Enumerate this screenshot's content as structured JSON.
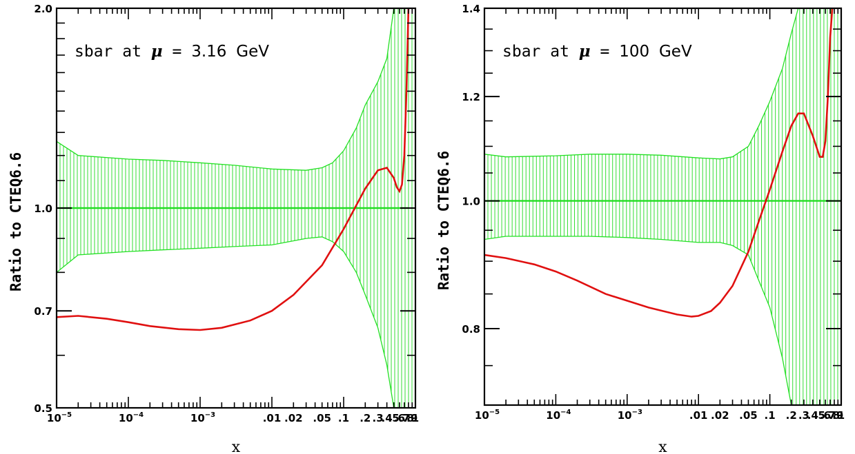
{
  "colors": {
    "band": "#22dd22",
    "central": "#e01010",
    "axes": "#000000"
  },
  "chart_data": [
    {
      "type": "line",
      "annotation": {
        "prefix": "sbar at",
        "symbol": "μ",
        "equals": "=",
        "value": "3.16",
        "unit": "GeV"
      },
      "xlabel": "x",
      "ylabel": "Ratio to CTEQ6.6",
      "xscale": "log",
      "yscale": "log",
      "xlim": [
        1e-05,
        1
      ],
      "ylim": [
        0.5,
        2.0
      ],
      "grid": false,
      "yticks": [
        {
          "value": 0.5,
          "label": "0.5"
        },
        {
          "value": 0.7,
          "label": "0.7"
        },
        {
          "value": 1.0,
          "label": "1.0"
        },
        {
          "value": 2.0,
          "label": "2.0"
        }
      ],
      "xticks": [
        {
          "value": 1e-05,
          "base": "10",
          "exp": "−5"
        },
        {
          "value": 0.0001,
          "base": "10",
          "exp": "−4"
        },
        {
          "value": 0.001,
          "base": "10",
          "exp": "−3"
        },
        {
          "value": 0.01,
          "label": ".01"
        },
        {
          "value": 0.02,
          "label": ".02"
        },
        {
          "value": 0.05,
          "label": ".05"
        },
        {
          "value": 0.1,
          "label": ".1"
        },
        {
          "value": 0.2,
          "label": ".2"
        },
        {
          "value": 0.3,
          "label": ".3"
        },
        {
          "value": 0.4,
          "label": ".4"
        },
        {
          "value": 0.5,
          "label": ".5"
        },
        {
          "value": 0.6,
          "label": ".6"
        },
        {
          "value": 0.7,
          "label": ".7"
        },
        {
          "value": 0.8,
          "label": ".8"
        },
        {
          "value": 0.9,
          "label": ".9"
        },
        {
          "value": 1.0,
          "label": "1"
        }
      ],
      "reference_line": {
        "y": 1.0,
        "x_end": 0.8
      },
      "band": {
        "x": [
          1e-05,
          2e-05,
          0.0001,
          0.0003,
          0.001,
          0.003,
          0.01,
          0.03,
          0.05,
          0.07,
          0.1,
          0.15,
          0.2,
          0.3,
          0.4,
          0.5,
          0.6,
          0.7,
          0.8,
          0.9,
          1.0
        ],
        "upper": [
          1.26,
          1.2,
          1.185,
          1.18,
          1.17,
          1.16,
          1.145,
          1.14,
          1.15,
          1.17,
          1.22,
          1.32,
          1.43,
          1.55,
          1.68,
          2.0,
          2.0,
          2.0,
          2.0,
          2.0,
          2.0
        ],
        "lower": [
          0.8,
          0.85,
          0.86,
          0.865,
          0.87,
          0.875,
          0.88,
          0.9,
          0.905,
          0.89,
          0.86,
          0.8,
          0.74,
          0.66,
          0.58,
          0.5,
          0.5,
          0.5,
          0.5,
          0.5,
          0.5
        ]
      },
      "central": {
        "x": [
          1e-05,
          2e-05,
          5e-05,
          0.0001,
          0.0002,
          0.0005,
          0.001,
          0.002,
          0.005,
          0.01,
          0.02,
          0.05,
          0.1,
          0.2,
          0.3,
          0.4,
          0.5,
          0.55,
          0.6,
          0.65,
          0.7,
          0.75,
          0.8
        ],
        "y": [
          0.685,
          0.688,
          0.681,
          0.673,
          0.664,
          0.657,
          0.655,
          0.66,
          0.677,
          0.7,
          0.74,
          0.82,
          0.93,
          1.07,
          1.14,
          1.15,
          1.11,
          1.075,
          1.06,
          1.085,
          1.2,
          1.5,
          2.0
        ]
      }
    },
    {
      "type": "line",
      "annotation": {
        "prefix": "sbar at",
        "symbol": "μ",
        "equals": "=",
        "value": "100",
        "unit": "GeV"
      },
      "xlabel": "x",
      "ylabel": "Ratio to CTEQ6.6",
      "xscale": "log",
      "yscale": "log",
      "xlim": [
        1e-05,
        1
      ],
      "ylim": [
        0.7,
        1.4
      ],
      "grid": false,
      "yticks": [
        {
          "value": 0.8,
          "label": "0.8"
        },
        {
          "value": 1.0,
          "label": "1.0"
        },
        {
          "value": 1.2,
          "label": "1.2"
        },
        {
          "value": 1.4,
          "label": "1.4"
        }
      ],
      "xticks": [
        {
          "value": 1e-05,
          "base": "10",
          "exp": "−5"
        },
        {
          "value": 0.0001,
          "base": "10",
          "exp": "−4"
        },
        {
          "value": 0.001,
          "base": "10",
          "exp": "−3"
        },
        {
          "value": 0.01,
          "label": ".01"
        },
        {
          "value": 0.02,
          "label": ".02"
        },
        {
          "value": 0.05,
          "label": ".05"
        },
        {
          "value": 0.1,
          "label": ".1"
        },
        {
          "value": 0.2,
          "label": ".2"
        },
        {
          "value": 0.3,
          "label": ".3"
        },
        {
          "value": 0.4,
          "label": ".4"
        },
        {
          "value": 0.5,
          "label": ".5"
        },
        {
          "value": 0.6,
          "label": ".6"
        },
        {
          "value": 0.7,
          "label": ".7"
        },
        {
          "value": 0.8,
          "label": ".8"
        },
        {
          "value": 0.9,
          "label": ".9"
        },
        {
          "value": 1.0,
          "label": "1"
        }
      ],
      "reference_line": {
        "y": 1.0,
        "x_end": 1.0
      },
      "band": {
        "x": [
          1e-05,
          2e-05,
          0.0001,
          0.0003,
          0.001,
          0.003,
          0.01,
          0.02,
          0.03,
          0.05,
          0.07,
          0.1,
          0.15,
          0.2,
          0.25,
          0.3,
          1.0
        ],
        "upper": [
          1.085,
          1.08,
          1.082,
          1.085,
          1.085,
          1.083,
          1.078,
          1.076,
          1.08,
          1.1,
          1.14,
          1.19,
          1.26,
          1.34,
          1.4,
          1.4,
          1.4
        ],
        "lower": [
          0.935,
          0.94,
          0.94,
          0.94,
          0.938,
          0.935,
          0.93,
          0.93,
          0.925,
          0.91,
          0.87,
          0.83,
          0.76,
          0.7,
          0.7,
          0.7,
          0.7
        ]
      },
      "central": {
        "x": [
          1e-05,
          2e-05,
          5e-05,
          0.0001,
          0.0002,
          0.0005,
          0.001,
          0.002,
          0.005,
          0.008,
          0.01,
          0.015,
          0.02,
          0.03,
          0.05,
          0.07,
          0.1,
          0.15,
          0.2,
          0.25,
          0.3,
          0.4,
          0.5,
          0.55,
          0.6,
          0.65,
          0.7,
          0.75
        ],
        "y": [
          0.91,
          0.905,
          0.895,
          0.884,
          0.87,
          0.85,
          0.84,
          0.83,
          0.82,
          0.817,
          0.818,
          0.825,
          0.837,
          0.862,
          0.915,
          0.965,
          1.02,
          1.09,
          1.14,
          1.165,
          1.165,
          1.12,
          1.08,
          1.08,
          1.11,
          1.2,
          1.33,
          1.4
        ]
      }
    }
  ]
}
